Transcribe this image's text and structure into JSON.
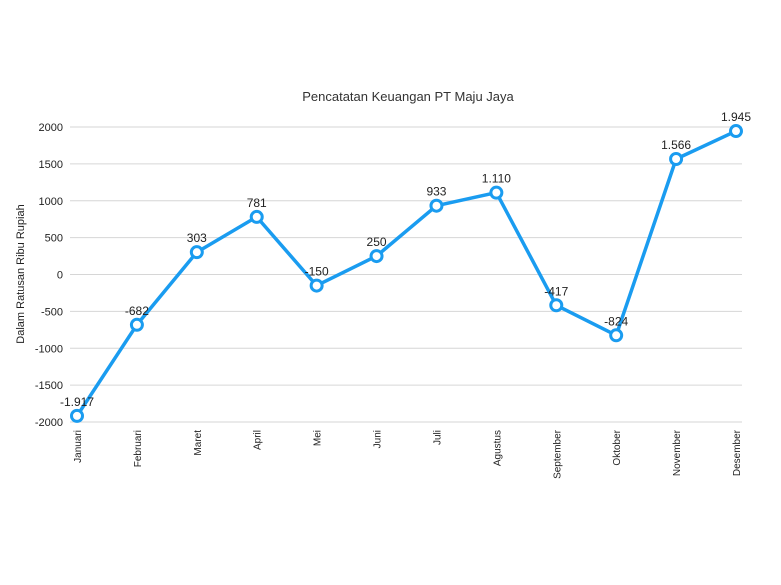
{
  "chart_data": {
    "type": "line",
    "title": "Pencatatan Keuangan PT Maju Jaya",
    "xlabel": "",
    "ylabel": "Dalam Ratusan Ribu Rupiah",
    "categories": [
      "Januari",
      "Februari",
      "Maret",
      "April",
      "Mei",
      "Juni",
      "Juli",
      "Agustus",
      "September",
      "Oktober",
      "November",
      "Desember"
    ],
    "series": [
      {
        "values": [
          -1917,
          -682,
          303,
          781,
          -150,
          250,
          933,
          1110,
          -417,
          -824,
          1566,
          1945
        ],
        "labels": [
          "-1.917",
          "-682",
          "303",
          "781",
          "-150",
          "250",
          "933",
          "1.110",
          "-417",
          "-824",
          "1.566",
          "1.945"
        ],
        "color": "#1a9cf0"
      }
    ],
    "ylim": [
      -2000,
      2000
    ],
    "yticks": [
      -2000,
      -1500,
      -1000,
      -500,
      0,
      500,
      1000,
      1500,
      2000
    ],
    "grid": true,
    "legend": "none"
  }
}
